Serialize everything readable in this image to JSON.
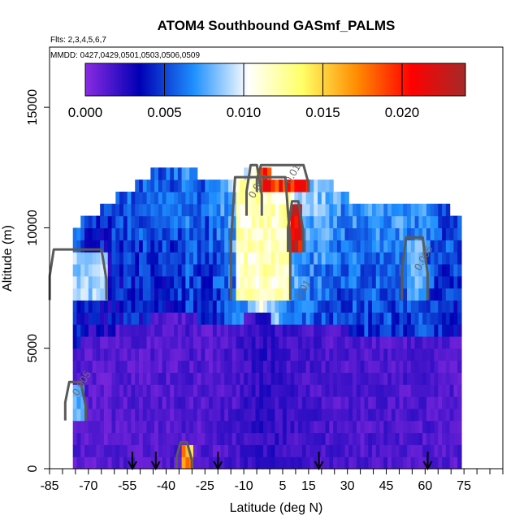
{
  "chart_data": {
    "type": "heatmap",
    "title": "ATOM4 Southbound GASmf_PALMS",
    "subtitle_flights": "Flts: 2,3,4,5,6,7",
    "subtitle_dates": "MMDD: 0427,0429,0501,0503,0506,0509",
    "xlabel": "Latitude (deg N)",
    "ylabel": "Altitude (m)",
    "xlim": [
      -85,
      90
    ],
    "ylim": [
      0,
      17500
    ],
    "x_ticks": [
      -85,
      -80,
      -75,
      -70,
      -65,
      -60,
      -55,
      -50,
      -45,
      -40,
      -35,
      -30,
      -25,
      -20,
      -15,
      -10,
      -5,
      0,
      5,
      10,
      15,
      20,
      25,
      30,
      35,
      40,
      45,
      50,
      55,
      60,
      65,
      70,
      75,
      80,
      85,
      90
    ],
    "x_tick_labels": [
      "-85",
      "-70",
      "-55",
      "-40",
      "-25",
      "-10",
      "5",
      "15",
      "30",
      "45",
      "60",
      "75"
    ],
    "x_tick_label_values": [
      -85,
      -70,
      -55,
      -40,
      -25,
      -10,
      5,
      15,
      30,
      45,
      60,
      75
    ],
    "y_ticks": [
      0,
      5000,
      10000,
      15000
    ],
    "y_tick_labels": [
      "0",
      "5000",
      "10000",
      "15000"
    ],
    "colorbar": {
      "min": 0.0,
      "max": 0.024,
      "tick_values": [
        0.0,
        0.005,
        0.01,
        0.015,
        0.02
      ],
      "tick_labels": [
        "0.000",
        "0.005",
        "0.010",
        "0.015",
        "0.020"
      ],
      "colors": [
        "#8a2be2",
        "#0000b4",
        "#1e90ff",
        "#ffffff",
        "#ffff66",
        "#ff8c00",
        "#ff0000",
        "#a52a2a"
      ]
    },
    "column_lat_range": [
      -76,
      73
    ],
    "column_lat_step": 1.5,
    "cell_alt_step": 500,
    "profiles": [
      {
        "lat": -76,
        "top": 10000,
        "mean": 0.004
      },
      {
        "lat": -70,
        "top": 10500,
        "mean": 0.003
      },
      {
        "lat": -63,
        "top": 11000,
        "mean": 0.003
      },
      {
        "lat": -56,
        "top": 11500,
        "mean": 0.004
      },
      {
        "lat": -50,
        "top": 12000,
        "mean": 0.004
      },
      {
        "lat": -44,
        "top": 12500,
        "mean": 0.004
      },
      {
        "lat": -38,
        "top": 12500,
        "mean": 0.004
      },
      {
        "lat": -32,
        "top": 12500,
        "mean": 0.005
      },
      {
        "lat": -26,
        "top": 12000,
        "mean": 0.004
      },
      {
        "lat": -20,
        "top": 12000,
        "mean": 0.005
      },
      {
        "lat": -14,
        "top": 12000,
        "mean": 0.006
      },
      {
        "lat": -8,
        "top": 12500,
        "mean": 0.008
      },
      {
        "lat": -4,
        "top": 12500,
        "mean": 0.011
      },
      {
        "lat": 2,
        "top": 12000,
        "mean": 0.009
      },
      {
        "lat": 8,
        "top": 12000,
        "mean": 0.007
      },
      {
        "lat": 14,
        "top": 12000,
        "mean": 0.006
      },
      {
        "lat": 20,
        "top": 12000,
        "mean": 0.006
      },
      {
        "lat": 26,
        "top": 11500,
        "mean": 0.005
      },
      {
        "lat": 34,
        "top": 11000,
        "mean": 0.005
      },
      {
        "lat": 42,
        "top": 11000,
        "mean": 0.005
      },
      {
        "lat": 50,
        "top": 11000,
        "mean": 0.005
      },
      {
        "lat": 58,
        "top": 11000,
        "mean": 0.005
      },
      {
        "lat": 66,
        "top": 11000,
        "mean": 0.004
      },
      {
        "lat": 72,
        "top": 10500,
        "mean": 0.004
      }
    ],
    "high_features": [
      {
        "lat_range": [
          -14,
          7
        ],
        "alt_range": [
          7000,
          12000
        ],
        "value": 0.012
      },
      {
        "lat_range": [
          -8,
          -4
        ],
        "alt_range": [
          10500,
          12500
        ],
        "value": 0.012
      },
      {
        "lat_range": [
          -4,
          14
        ],
        "alt_range": [
          11500,
          12500
        ],
        "value": 0.02
      },
      {
        "lat_range": [
          8,
          12
        ],
        "alt_range": [
          9000,
          11000
        ],
        "value": 0.022
      },
      {
        "lat_range": [
          -35,
          -31
        ],
        "alt_range": [
          0,
          1000
        ],
        "value": 0.017
      },
      {
        "lat_range": [
          -78,
          -72
        ],
        "alt_range": [
          2000,
          3500
        ],
        "value": 0.008
      },
      {
        "lat_range": [
          -84,
          -64
        ],
        "alt_range": [
          7000,
          9000
        ],
        "value": 0.009
      },
      {
        "lat_range": [
          52,
          60
        ],
        "alt_range": [
          7000,
          9500
        ],
        "value": 0.008
      }
    ],
    "contour_labels": [
      "0.005",
      "0.01",
      "0.005",
      "0.005",
      "0.01"
    ],
    "flight_markers_lat": [
      -53,
      -44,
      -20,
      19,
      61
    ]
  }
}
